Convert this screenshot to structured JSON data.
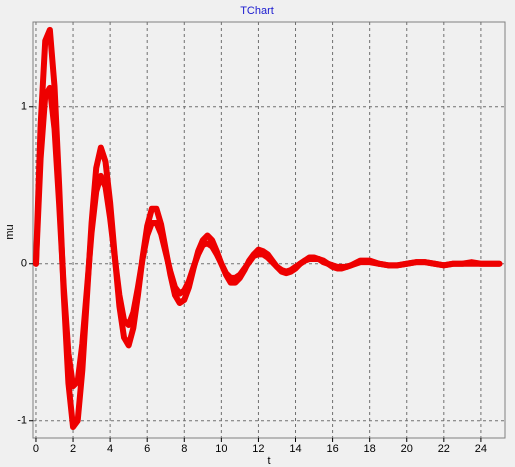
{
  "chart_data": {
    "type": "line",
    "title": "TChart",
    "xlabel": "t",
    "ylabel": "mu",
    "x": [
      0,
      0.25,
      0.5,
      0.75,
      1,
      1.25,
      1.5,
      1.75,
      2,
      2.25,
      2.5,
      2.75,
      3,
      3.25,
      3.5,
      3.75,
      4,
      4.25,
      4.5,
      4.75,
      5,
      5.25,
      5.5,
      5.75,
      6,
      6.25,
      6.5,
      6.75,
      7,
      7.25,
      7.5,
      7.75,
      8,
      8.25,
      8.5,
      8.75,
      9,
      9.25,
      9.5,
      9.75,
      10,
      10.25,
      10.5,
      10.75,
      11,
      11.25,
      11.5,
      11.75,
      12,
      12.25,
      12.5,
      12.75,
      13,
      13.25,
      13.5,
      13.75,
      14,
      14.25,
      14.5,
      14.75,
      15,
      15.25,
      15.5,
      15.75,
      16,
      16.25,
      16.5,
      16.75,
      17,
      17.5,
      18,
      18.5,
      19,
      19.5,
      20,
      20.5,
      21,
      21.5,
      22,
      22.5,
      23,
      23.5,
      24,
      24.5,
      25
    ],
    "series": [
      {
        "color": "#ee0000",
        "values": [
          0,
          0.88,
          1.42,
          1.49,
          1.13,
          0.5,
          -0.2,
          -0.76,
          -1.04,
          -1.0,
          -0.68,
          -0.21,
          0.26,
          0.61,
          0.74,
          0.65,
          0.39,
          0.05,
          -0.27,
          -0.47,
          -0.52,
          -0.41,
          -0.2,
          0.04,
          0.24,
          0.35,
          0.35,
          0.25,
          0.09,
          -0.07,
          -0.2,
          -0.25,
          -0.23,
          -0.15,
          -0.03,
          0.08,
          0.15,
          0.18,
          0.15,
          0.08,
          0,
          -0.07,
          -0.12,
          -0.12,
          -0.09,
          -0.04,
          0.02,
          0.06,
          0.09,
          0.08,
          0.06,
          0.02,
          -0.02,
          -0.05,
          -0.06,
          -0.05,
          -0.03,
          0,
          0.02,
          0.04,
          0.04,
          0.03,
          0.02,
          0,
          -0.02,
          -0.03,
          -0.03,
          -0.02,
          -0.01,
          0.02,
          0.02,
          0,
          -0.01,
          -0.01,
          0,
          0.01,
          0.01,
          0,
          -0.01,
          0,
          0,
          0.01,
          0,
          0,
          0
        ]
      },
      {
        "color": "#ee0000",
        "values": [
          0,
          0.67,
          1.07,
          1.12,
          0.86,
          0.38,
          -0.15,
          -0.57,
          -0.78,
          -0.75,
          -0.51,
          -0.16,
          0.2,
          0.46,
          0.56,
          0.49,
          0.29,
          0.04,
          -0.2,
          -0.36,
          -0.39,
          -0.31,
          -0.15,
          0.03,
          0.18,
          0.26,
          0.26,
          0.19,
          0.07,
          -0.05,
          -0.15,
          -0.19,
          -0.17,
          -0.11,
          -0.02,
          0.06,
          0.12,
          0.13,
          0.11,
          0.06,
          0,
          -0.06,
          -0.09,
          -0.09,
          -0.07,
          -0.03,
          0.01,
          0.05,
          0.06,
          0.06,
          0.04,
          0.01,
          -0.02,
          -0.04,
          -0.05,
          -0.04,
          -0.02,
          0,
          0.02,
          0.03,
          0.03,
          0.03,
          0.01,
          0,
          -0.01,
          -0.02,
          -0.02,
          -0.02,
          -0.01,
          0.01,
          0.01,
          0,
          -0.01,
          -0.01,
          0,
          0.01,
          0.01,
          0,
          -0.01,
          0,
          0,
          0,
          0,
          0,
          0
        ]
      }
    ],
    "xlim": [
      -0.16,
      25.3
    ],
    "ylim": [
      -1.11,
      1.54
    ],
    "xticks": [
      0,
      2,
      4,
      6,
      8,
      10,
      12,
      14,
      16,
      18,
      20,
      22,
      24
    ],
    "yticks": [
      -1,
      0,
      1
    ],
    "grid": true
  }
}
